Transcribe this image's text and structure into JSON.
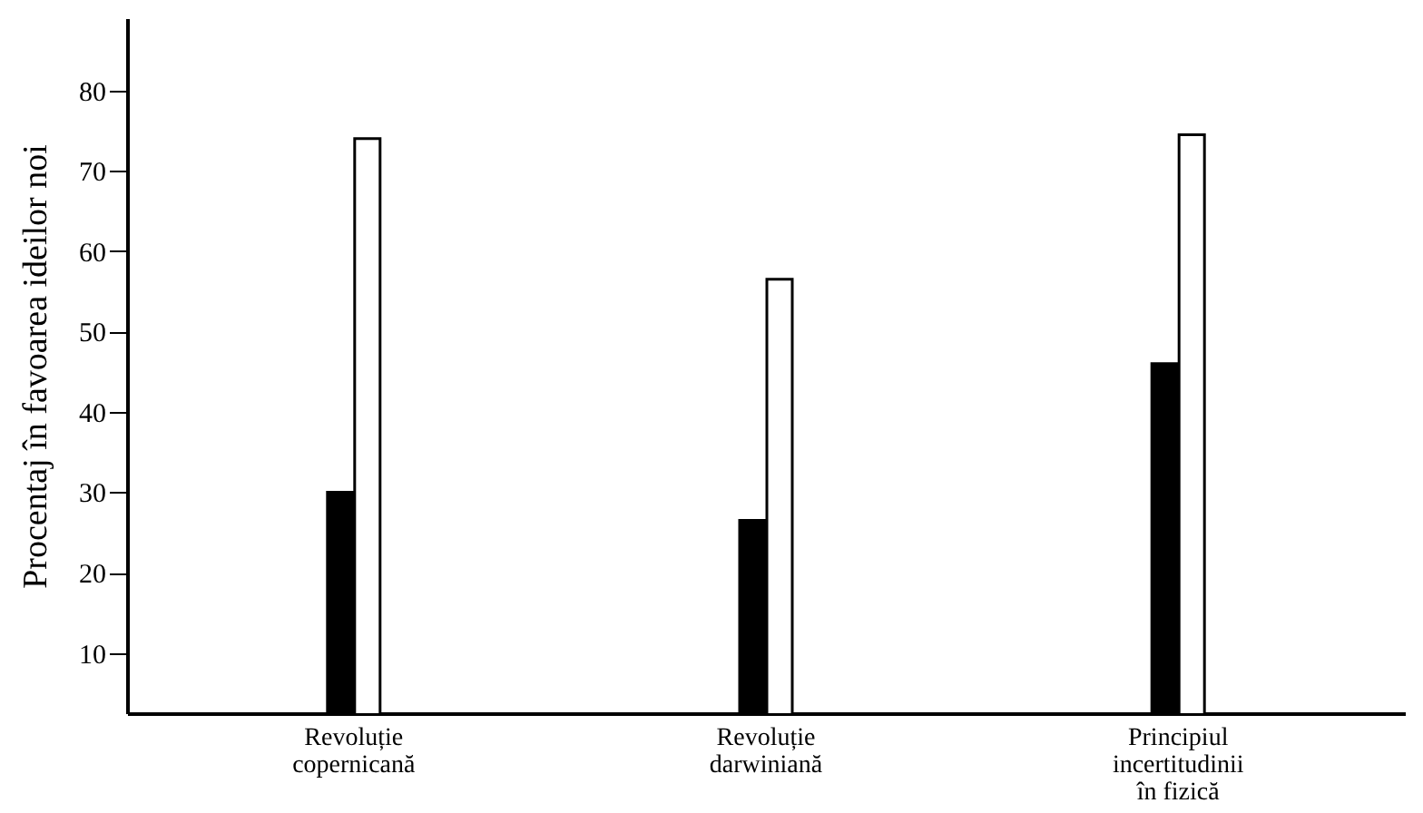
{
  "chart_data": {
    "type": "bar",
    "ylabel": "Procentaj în favoarea ideilor noi",
    "categories": [
      "Revoluție\ncopernicană",
      "Revoluție\ndarwiniană",
      "Principiul\nincertitudinii\nîn fizică"
    ],
    "series": [
      {
        "color": "#000000",
        "values": [
          30,
          26.5,
          46
        ]
      },
      {
        "color": "#ffffff",
        "values": [
          74,
          56.5,
          74.5
        ]
      }
    ],
    "ylim": [
      2.5,
      89
    ],
    "yticks": [
      10,
      20,
      30,
      40,
      50,
      60,
      70,
      80
    ],
    "grid": false
  }
}
